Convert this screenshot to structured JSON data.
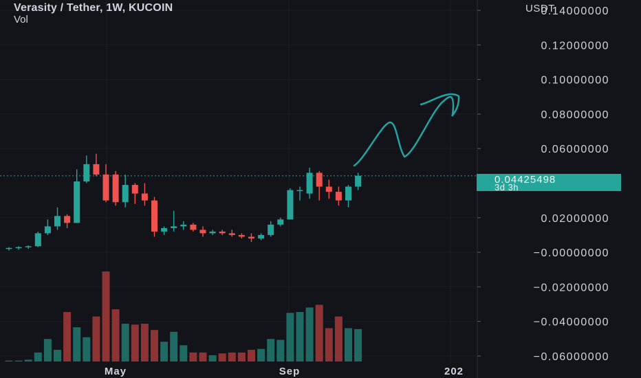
{
  "header": {
    "title": "Verasity / Tether, 1W, KUCOIN",
    "volume_label": "Vol"
  },
  "price_axis": {
    "currency": "USDT",
    "tick_labels": [
      "0.14000000",
      "0.12000000",
      "0.10000000",
      "0.08000000",
      "0.06000000",
      "0.02000000",
      "−0.00000000",
      "−0.02000000",
      "−0.04000000",
      "−0.06000000"
    ]
  },
  "last_price": {
    "value": "0.04425498",
    "countdown": "3d 3h",
    "color": "#26a69a"
  },
  "time_axis": {
    "tick_labels": [
      "May",
      "Sep",
      "202"
    ]
  },
  "colors": {
    "up": "#26a69a",
    "down": "#ef5350",
    "up_volume": "#1f6b64",
    "down_volume": "#8e3434",
    "drawing": "#1fa5a5",
    "background": "#131419"
  },
  "chart_data": {
    "type": "candlestick",
    "symbol": "Verasity / Tether",
    "interval": "1W",
    "exchange": "KUCOIN",
    "quote_currency": "USDT",
    "ylim": [
      -0.064,
      0.146
    ],
    "volume_max": 1.0,
    "candles": [
      {
        "o": 0.002,
        "h": 0.003,
        "l": 0.001,
        "c": 0.0025,
        "v": 0.01
      },
      {
        "o": 0.0025,
        "h": 0.0035,
        "l": 0.0015,
        "c": 0.003,
        "v": 0.01
      },
      {
        "o": 0.003,
        "h": 0.004,
        "l": 0.002,
        "c": 0.0035,
        "v": 0.02
      },
      {
        "o": 0.0035,
        "h": 0.012,
        "l": 0.003,
        "c": 0.011,
        "v": 0.1
      },
      {
        "o": 0.011,
        "h": 0.019,
        "l": 0.01,
        "c": 0.015,
        "v": 0.25
      },
      {
        "o": 0.015,
        "h": 0.026,
        "l": 0.013,
        "c": 0.021,
        "v": 0.13
      },
      {
        "o": 0.021,
        "h": 0.022,
        "l": 0.014,
        "c": 0.017,
        "v": 0.55
      },
      {
        "o": 0.017,
        "h": 0.048,
        "l": 0.017,
        "c": 0.041,
        "v": 0.38
      },
      {
        "o": 0.041,
        "h": 0.056,
        "l": 0.04,
        "c": 0.051,
        "v": 0.27
      },
      {
        "o": 0.051,
        "h": 0.057,
        "l": 0.044,
        "c": 0.045,
        "v": 0.5
      },
      {
        "o": 0.045,
        "h": 0.051,
        "l": 0.029,
        "c": 0.03,
        "v": 1.0
      },
      {
        "o": 0.045,
        "h": 0.047,
        "l": 0.027,
        "c": 0.029,
        "v": 0.58
      },
      {
        "o": 0.029,
        "h": 0.045,
        "l": 0.026,
        "c": 0.039,
        "v": 0.42
      },
      {
        "o": 0.039,
        "h": 0.04,
        "l": 0.028,
        "c": 0.034,
        "v": 0.41
      },
      {
        "o": 0.034,
        "h": 0.04,
        "l": 0.027,
        "c": 0.03,
        "v": 0.42
      },
      {
        "o": 0.03,
        "h": 0.032,
        "l": 0.009,
        "c": 0.012,
        "v": 0.35
      },
      {
        "o": 0.012,
        "h": 0.015,
        "l": 0.01,
        "c": 0.014,
        "v": 0.22
      },
      {
        "o": 0.014,
        "h": 0.024,
        "l": 0.012,
        "c": 0.015,
        "v": 0.33
      },
      {
        "o": 0.015,
        "h": 0.018,
        "l": 0.013,
        "c": 0.016,
        "v": 0.18
      },
      {
        "o": 0.016,
        "h": 0.017,
        "l": 0.012,
        "c": 0.013,
        "v": 0.1
      },
      {
        "o": 0.013,
        "h": 0.015,
        "l": 0.009,
        "c": 0.011,
        "v": 0.1
      },
      {
        "o": 0.011,
        "h": 0.013,
        "l": 0.01,
        "c": 0.012,
        "v": 0.07
      },
      {
        "o": 0.012,
        "h": 0.013,
        "l": 0.01,
        "c": 0.011,
        "v": 0.09
      },
      {
        "o": 0.011,
        "h": 0.013,
        "l": 0.009,
        "c": 0.01,
        "v": 0.1
      },
      {
        "o": 0.01,
        "h": 0.011,
        "l": 0.008,
        "c": 0.009,
        "v": 0.1
      },
      {
        "o": 0.009,
        "h": 0.011,
        "l": 0.006,
        "c": 0.008,
        "v": 0.13
      },
      {
        "o": 0.008,
        "h": 0.011,
        "l": 0.007,
        "c": 0.01,
        "v": 0.14
      },
      {
        "o": 0.01,
        "h": 0.018,
        "l": 0.009,
        "c": 0.016,
        "v": 0.25
      },
      {
        "o": 0.016,
        "h": 0.02,
        "l": 0.015,
        "c": 0.019,
        "v": 0.24
      },
      {
        "o": 0.019,
        "h": 0.037,
        "l": 0.019,
        "c": 0.036,
        "v": 0.54
      },
      {
        "o": 0.036,
        "h": 0.038,
        "l": 0.03,
        "c": 0.036,
        "v": 0.55
      },
      {
        "o": 0.034,
        "h": 0.049,
        "l": 0.031,
        "c": 0.046,
        "v": 0.6
      },
      {
        "o": 0.046,
        "h": 0.047,
        "l": 0.03,
        "c": 0.038,
        "v": 0.63
      },
      {
        "o": 0.038,
        "h": 0.042,
        "l": 0.031,
        "c": 0.035,
        "v": 0.37
      },
      {
        "o": 0.035,
        "h": 0.038,
        "l": 0.027,
        "c": 0.03,
        "v": 0.5
      },
      {
        "o": 0.03,
        "h": 0.039,
        "l": 0.026,
        "c": 0.038,
        "v": 0.37
      },
      {
        "o": 0.038,
        "h": 0.046,
        "l": 0.036,
        "c": 0.0443,
        "v": 0.36
      }
    ]
  }
}
